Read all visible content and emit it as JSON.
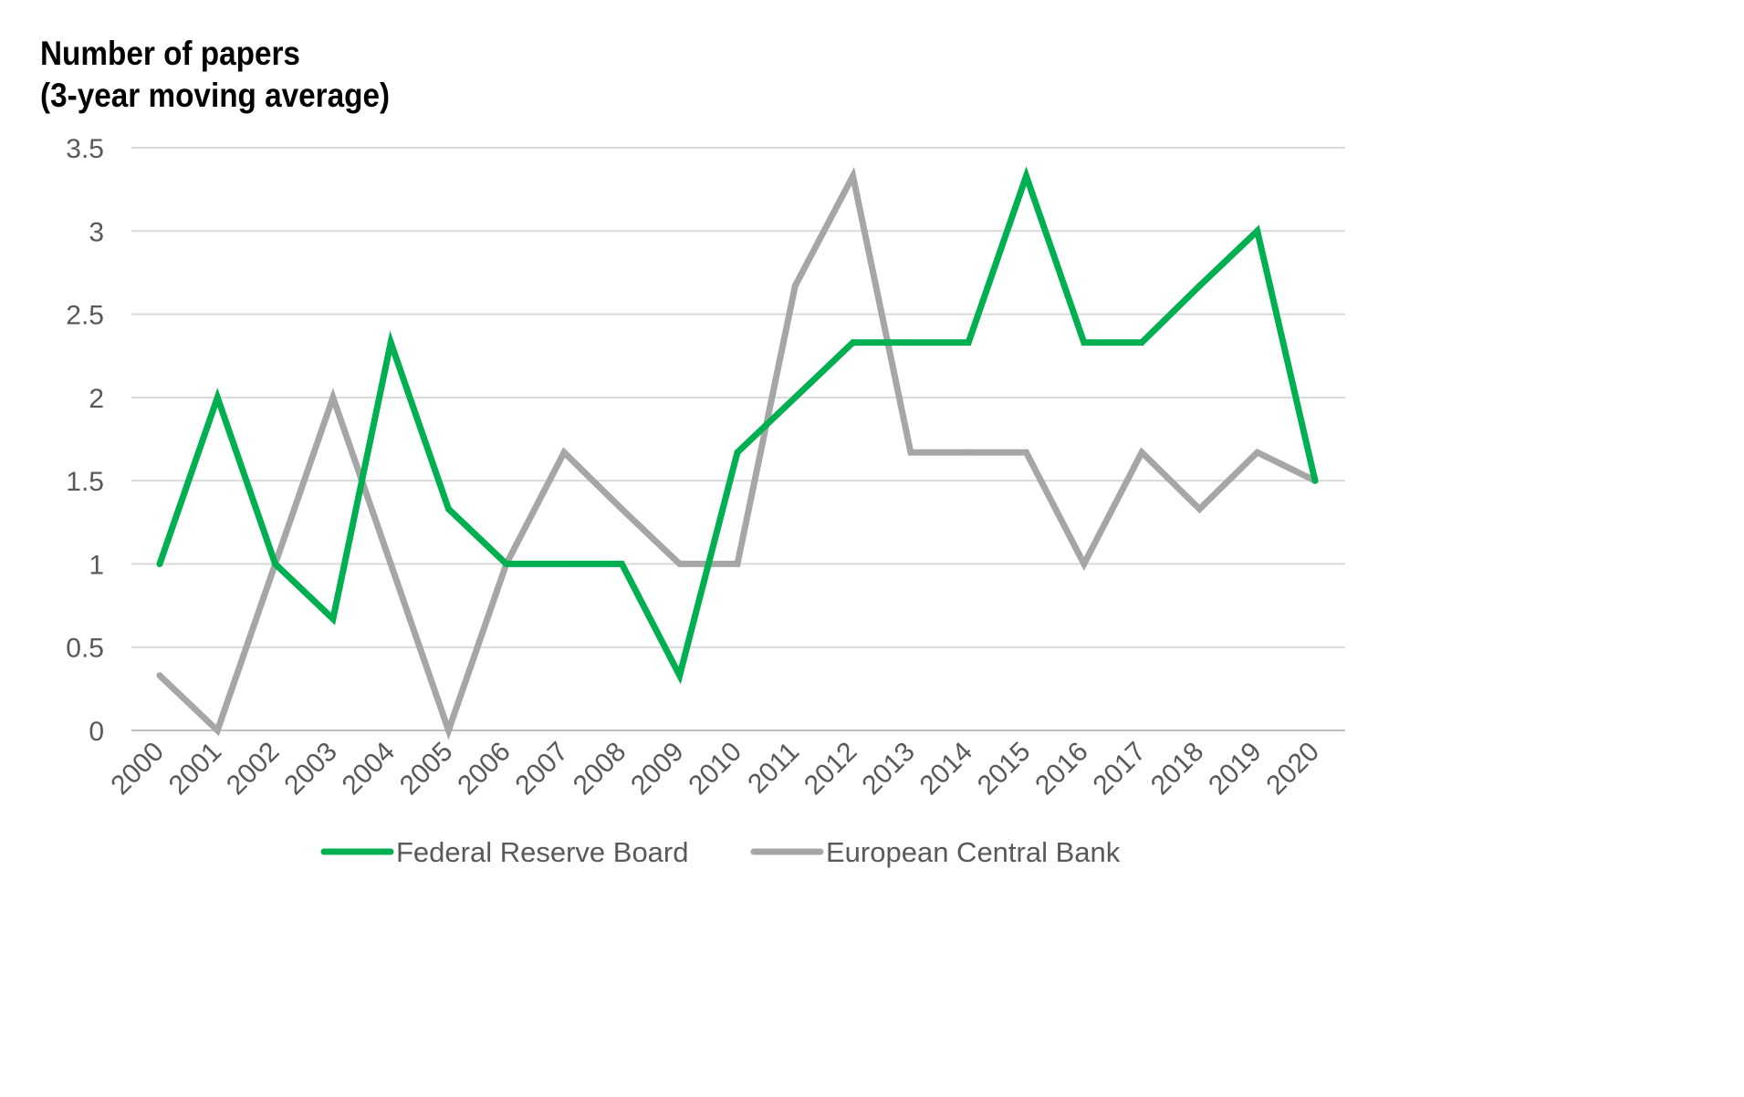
{
  "chart_data": {
    "type": "line",
    "title": [
      "Number of papers",
      "(3-year moving average)"
    ],
    "xlabel": "",
    "ylabel": "",
    "categories": [
      "2000",
      "2001",
      "2002",
      "2003",
      "2004",
      "2005",
      "2006",
      "2007",
      "2008",
      "2009",
      "2010",
      "2011",
      "2012",
      "2013",
      "2014",
      "2015",
      "2016",
      "2017",
      "2018",
      "2019",
      "2020"
    ],
    "yticks": [
      "0",
      "0.5",
      "1",
      "1.5",
      "2",
      "2.5",
      "3",
      "3.5"
    ],
    "ylim": [
      0,
      3.5
    ],
    "grid": true,
    "legend_position": "bottom",
    "series": [
      {
        "name": "Federal Reserve Board",
        "color": "#00B050",
        "values": [
          1,
          2,
          1,
          0.67,
          2.33,
          1.33,
          1,
          1,
          1,
          0.33,
          1.67,
          2,
          2.33,
          2.33,
          2.33,
          3.33,
          2.33,
          2.33,
          2.67,
          3,
          1.5
        ]
      },
      {
        "name": "European Central Bank",
        "color": "#A6A6A6",
        "values": [
          0.33,
          0,
          1,
          2,
          1,
          0,
          1,
          1.67,
          1.33,
          1,
          1,
          2.67,
          3.33,
          1.67,
          1.67,
          1.67,
          1,
          1.67,
          1.33,
          1.67,
          1.5
        ]
      }
    ]
  }
}
